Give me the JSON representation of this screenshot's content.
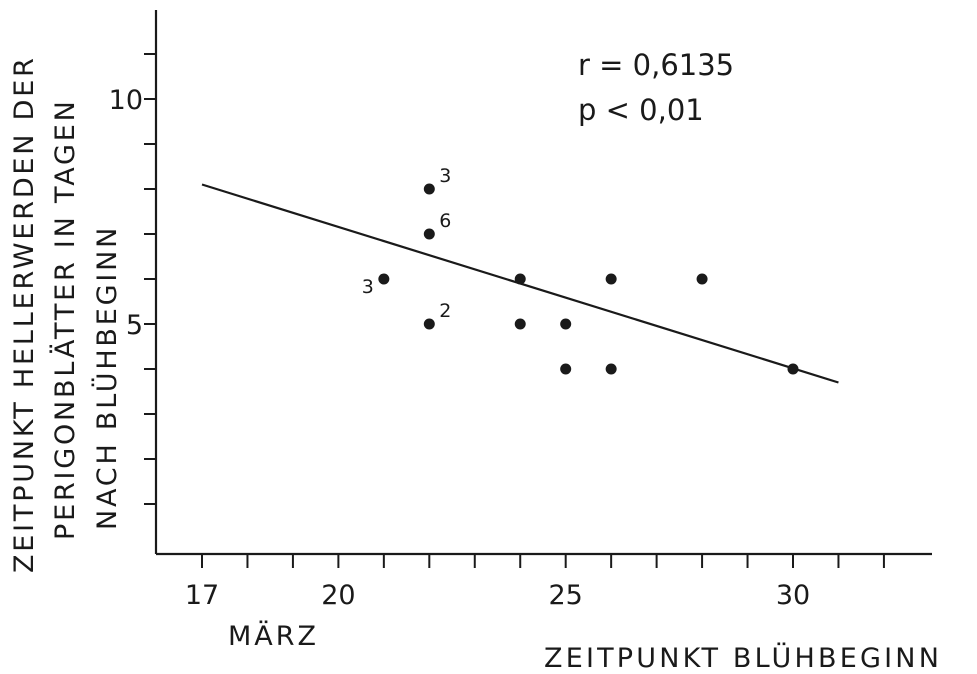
{
  "chart_data": {
    "type": "scatter",
    "title": "",
    "xlabel": "ZEITPUNKT BLÜHBEGINN",
    "ylabel_lines": [
      "ZEITPUNKT HELLERWERDEN DER",
      "PERIGONBLÄTTER IN TAGEN",
      "NACH BLÜHBEGINN"
    ],
    "x_sublabel": "MÄRZ",
    "xlim": [
      16,
      33
    ],
    "ylim": [
      0,
      12
    ],
    "x_ticks": [
      17,
      18,
      19,
      20,
      21,
      22,
      23,
      24,
      25,
      26,
      27,
      28,
      29,
      30,
      31,
      32
    ],
    "x_tick_labels": [
      {
        "value": 17,
        "label": "17"
      },
      {
        "value": 20,
        "label": "20"
      },
      {
        "value": 25,
        "label": "25"
      },
      {
        "value": 30,
        "label": "30"
      }
    ],
    "y_ticks": [
      1,
      2,
      3,
      4,
      5,
      6,
      7,
      8,
      9,
      10,
      11
    ],
    "y_tick_labels": [
      {
        "value": 5,
        "label": "5"
      },
      {
        "value": 10,
        "label": "10"
      }
    ],
    "points": [
      {
        "x": 21,
        "y": 6,
        "label": "3"
      },
      {
        "x": 22,
        "y": 8,
        "label": "3"
      },
      {
        "x": 22,
        "y": 7,
        "label": "6"
      },
      {
        "x": 22,
        "y": 5,
        "label": "2"
      },
      {
        "x": 24,
        "y": 6,
        "label": ""
      },
      {
        "x": 24,
        "y": 5,
        "label": ""
      },
      {
        "x": 25,
        "y": 5,
        "label": ""
      },
      {
        "x": 25,
        "y": 4,
        "label": ""
      },
      {
        "x": 26,
        "y": 6,
        "label": ""
      },
      {
        "x": 26,
        "y": 4,
        "label": ""
      },
      {
        "x": 28,
        "y": 6,
        "label": ""
      },
      {
        "x": 30,
        "y": 4,
        "label": ""
      }
    ],
    "regression_line": {
      "x": [
        17,
        31
      ],
      "y": [
        8.1,
        3.7
      ]
    },
    "annotations": [
      "r = 0,6135",
      "p < 0,01"
    ],
    "grid": false,
    "legend": "none"
  }
}
